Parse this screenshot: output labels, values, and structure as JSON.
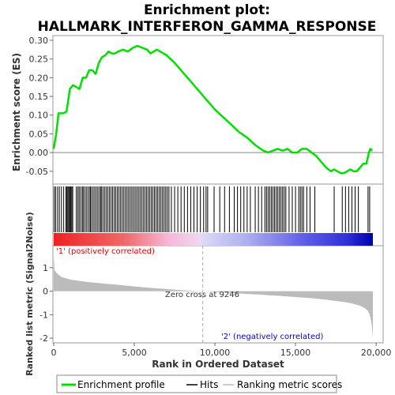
{
  "title_line1": "Enrichment plot:",
  "title_line2": "HALLMARK_INTERFERON_GAMMA_RESPONSE",
  "colors": {
    "es_line": "#00e000",
    "hits": "#000000",
    "metric_fill": "#bbbbbb",
    "pos_label": "#e00000",
    "neg_label": "#0000e0"
  },
  "chart_data": [
    {
      "type": "line",
      "name": "enrichment-profile",
      "ylabel": "Enrichment score (ES)",
      "xlim": [
        0,
        19800
      ],
      "ylim": [
        -0.08,
        0.3
      ],
      "yticks": [
        -0.05,
        0.0,
        0.05,
        0.1,
        0.15,
        0.2,
        0.25,
        0.3
      ],
      "ytick_labels": [
        "-0.05",
        "0.00",
        "0.05",
        "0.10",
        "0.15",
        "0.20",
        "0.25",
        "0.30"
      ],
      "x": [
        0,
        150,
        300,
        450,
        600,
        800,
        1000,
        1200,
        1400,
        1600,
        1800,
        2000,
        2200,
        2400,
        2600,
        2800,
        3000,
        3200,
        3400,
        3600,
        3800,
        4000,
        4300,
        4600,
        4900,
        5200,
        5500,
        5800,
        6000,
        6200,
        6400,
        6600,
        6800,
        7000,
        7500,
        8000,
        8500,
        9000,
        9500,
        10000,
        10500,
        11000,
        11500,
        12000,
        12500,
        13000,
        13300,
        13600,
        13900,
        14200,
        14500,
        14800,
        15100,
        15400,
        15700,
        16000,
        16300,
        16600,
        16900,
        17200,
        17400,
        17600,
        17800,
        18000,
        18200,
        18400,
        18600,
        18800,
        19000,
        19200,
        19400,
        19550,
        19650,
        19750
      ],
      "y": [
        0.01,
        0.05,
        0.105,
        0.105,
        0.105,
        0.11,
        0.17,
        0.18,
        0.175,
        0.17,
        0.2,
        0.2,
        0.22,
        0.22,
        0.21,
        0.24,
        0.255,
        0.26,
        0.27,
        0.265,
        0.265,
        0.27,
        0.275,
        0.27,
        0.28,
        0.285,
        0.28,
        0.275,
        0.265,
        0.27,
        0.275,
        0.27,
        0.265,
        0.26,
        0.24,
        0.215,
        0.19,
        0.165,
        0.14,
        0.115,
        0.095,
        0.075,
        0.055,
        0.04,
        0.02,
        0.005,
        0.0,
        0.005,
        0.01,
        0.005,
        0.01,
        0.0,
        0.0,
        0.01,
        0.01,
        0.0,
        -0.01,
        -0.025,
        -0.04,
        -0.05,
        -0.045,
        -0.05,
        -0.055,
        -0.055,
        -0.05,
        -0.045,
        -0.05,
        -0.05,
        -0.04,
        -0.03,
        -0.03,
        0.0,
        0.01,
        0.005
      ]
    },
    {
      "type": "hits",
      "name": "hits",
      "xlim": [
        0,
        19800
      ],
      "positions": [
        30,
        120,
        240,
        350,
        480,
        620,
        760,
        820,
        880,
        940,
        1000,
        1060,
        1120,
        1180,
        1400,
        1500,
        1580,
        1680,
        1780,
        1850,
        1950,
        2050,
        2150,
        2250,
        2300,
        2400,
        2500,
        2600,
        2700,
        2800,
        2900,
        2950,
        3050,
        3150,
        3250,
        3350,
        3450,
        3550,
        3650,
        3750,
        3850,
        3950,
        4050,
        4150,
        4250,
        4350,
        4450,
        4550,
        4650,
        4750,
        4850,
        4950,
        5050,
        5150,
        5250,
        5350,
        5450,
        5550,
        5650,
        5750,
        5850,
        5950,
        6050,
        6150,
        6250,
        6350,
        6450,
        6550,
        6650,
        6750,
        6850,
        6950,
        7050,
        7150,
        7300,
        7500,
        7700,
        7900,
        8100,
        8300,
        8500,
        8700,
        8900,
        9100,
        9300,
        9450,
        9550,
        9950,
        10300,
        10600,
        10900,
        11200,
        11400,
        11600,
        11800,
        12000,
        12200,
        12500,
        12700,
        12900,
        13100,
        13200,
        13300,
        13400,
        13500,
        13600,
        13700,
        13800,
        13900,
        14000,
        14100,
        14200,
        14300,
        14400,
        14600,
        14800,
        15000,
        15200,
        15300,
        15400,
        15500,
        15700,
        15900,
        16200,
        17400,
        17900,
        18100,
        18300,
        18500,
        18700,
        18900,
        19500,
        19600
      ]
    },
    {
      "type": "area",
      "name": "ranked-list-metric",
      "xlabel": "Rank in Ordered Dataset",
      "ylabel": "Ranked list metric (Signal2Noise)",
      "xlim": [
        0,
        19800
      ],
      "ylim": [
        -2.2,
        1.7
      ],
      "xticks": [
        0,
        5000,
        10000,
        15000,
        20000
      ],
      "xtick_labels": [
        "0",
        "5,000",
        "10,000",
        "15,000",
        "20,000"
      ],
      "yticks": [
        -2,
        -1,
        0,
        1
      ],
      "ytick_labels": [
        "-2",
        "-1",
        "0",
        "1"
      ],
      "x": [
        0,
        50,
        200,
        500,
        1000,
        2000,
        3000,
        4000,
        5000,
        6000,
        7000,
        8000,
        9246,
        10000,
        11000,
        12000,
        13000,
        14000,
        15000,
        16000,
        17000,
        18000,
        18500,
        19000,
        19300,
        19500,
        19600,
        19700,
        19750,
        19800
      ],
      "y": [
        1.5,
        0.9,
        0.75,
        0.6,
        0.5,
        0.4,
        0.33,
        0.27,
        0.2,
        0.14,
        0.09,
        0.04,
        0.0,
        -0.03,
        -0.08,
        -0.12,
        -0.16,
        -0.2,
        -0.25,
        -0.3,
        -0.37,
        -0.46,
        -0.52,
        -0.62,
        -0.72,
        -0.85,
        -1.0,
        -1.3,
        -1.6,
        -2.0
      ],
      "zero_cross_label": "Zero cross at 9246",
      "zero_cross_x": 9246,
      "pos_label": "'1' (positively correlated)",
      "neg_label": "'2' (negatively correlated)"
    }
  ],
  "legend": {
    "placement": "bottom",
    "items": [
      {
        "label": "Enrichment profile",
        "color": "#00e000"
      },
      {
        "label": "Hits",
        "color": "#000000"
      },
      {
        "label": "Ranking metric scores",
        "color": "#bbbbbb"
      }
    ]
  }
}
